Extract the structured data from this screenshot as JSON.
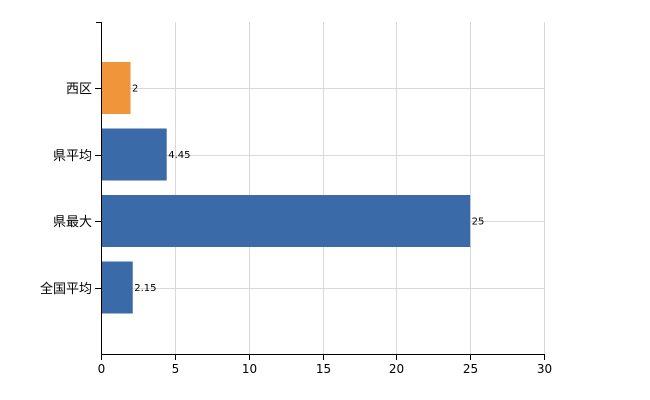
{
  "chart_data": {
    "type": "bar",
    "orientation": "horizontal",
    "categories": [
      "西区",
      "県平均",
      "県最大",
      "全国平均"
    ],
    "values": [
      2,
      4.45,
      25,
      2.15
    ],
    "data_labels": [
      "2",
      "4.45",
      "25",
      "2.15"
    ],
    "bar_colors": [
      "#f0953a",
      "#3a6aa8",
      "#3a6aa8",
      "#3a6aa8"
    ],
    "xlim": [
      0,
      30
    ],
    "x_ticks": [
      0,
      5,
      10,
      15,
      20,
      25,
      30
    ],
    "x_tick_labels": [
      "0",
      "5",
      "10",
      "15",
      "20",
      "25",
      "30"
    ],
    "grid": true,
    "legend": "none"
  }
}
